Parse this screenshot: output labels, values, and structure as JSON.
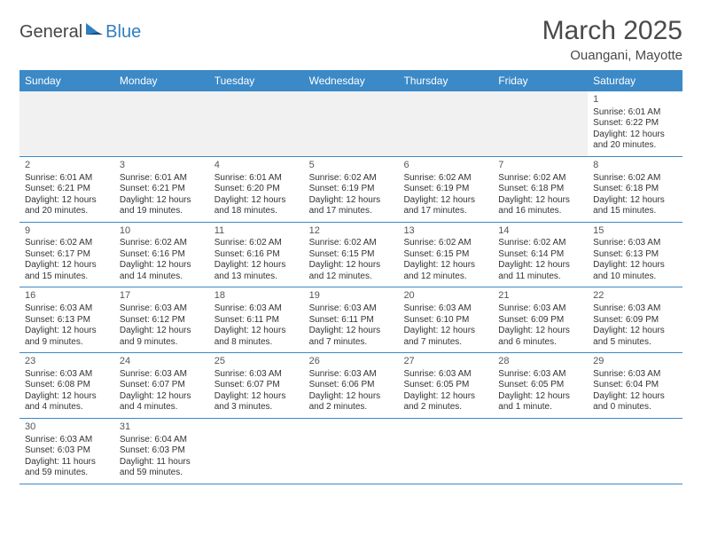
{
  "brand": {
    "part1": "General",
    "part2": "Blue"
  },
  "title": "March 2025",
  "location": "Ouangani, Mayotte",
  "colors": {
    "header_bg": "#3b89c7",
    "header_text": "#ffffff",
    "divider": "#3b89c7",
    "blank_bg": "#f1f1f1",
    "body_text": "#333333"
  },
  "day_headers": [
    "Sunday",
    "Monday",
    "Tuesday",
    "Wednesday",
    "Thursday",
    "Friday",
    "Saturday"
  ],
  "weeks": [
    [
      null,
      null,
      null,
      null,
      null,
      null,
      {
        "n": "1",
        "sr": "Sunrise: 6:01 AM",
        "ss": "Sunset: 6:22 PM",
        "d1": "Daylight: 12 hours",
        "d2": "and 20 minutes."
      }
    ],
    [
      {
        "n": "2",
        "sr": "Sunrise: 6:01 AM",
        "ss": "Sunset: 6:21 PM",
        "d1": "Daylight: 12 hours",
        "d2": "and 20 minutes."
      },
      {
        "n": "3",
        "sr": "Sunrise: 6:01 AM",
        "ss": "Sunset: 6:21 PM",
        "d1": "Daylight: 12 hours",
        "d2": "and 19 minutes."
      },
      {
        "n": "4",
        "sr": "Sunrise: 6:01 AM",
        "ss": "Sunset: 6:20 PM",
        "d1": "Daylight: 12 hours",
        "d2": "and 18 minutes."
      },
      {
        "n": "5",
        "sr": "Sunrise: 6:02 AM",
        "ss": "Sunset: 6:19 PM",
        "d1": "Daylight: 12 hours",
        "d2": "and 17 minutes."
      },
      {
        "n": "6",
        "sr": "Sunrise: 6:02 AM",
        "ss": "Sunset: 6:19 PM",
        "d1": "Daylight: 12 hours",
        "d2": "and 17 minutes."
      },
      {
        "n": "7",
        "sr": "Sunrise: 6:02 AM",
        "ss": "Sunset: 6:18 PM",
        "d1": "Daylight: 12 hours",
        "d2": "and 16 minutes."
      },
      {
        "n": "8",
        "sr": "Sunrise: 6:02 AM",
        "ss": "Sunset: 6:18 PM",
        "d1": "Daylight: 12 hours",
        "d2": "and 15 minutes."
      }
    ],
    [
      {
        "n": "9",
        "sr": "Sunrise: 6:02 AM",
        "ss": "Sunset: 6:17 PM",
        "d1": "Daylight: 12 hours",
        "d2": "and 15 minutes."
      },
      {
        "n": "10",
        "sr": "Sunrise: 6:02 AM",
        "ss": "Sunset: 6:16 PM",
        "d1": "Daylight: 12 hours",
        "d2": "and 14 minutes."
      },
      {
        "n": "11",
        "sr": "Sunrise: 6:02 AM",
        "ss": "Sunset: 6:16 PM",
        "d1": "Daylight: 12 hours",
        "d2": "and 13 minutes."
      },
      {
        "n": "12",
        "sr": "Sunrise: 6:02 AM",
        "ss": "Sunset: 6:15 PM",
        "d1": "Daylight: 12 hours",
        "d2": "and 12 minutes."
      },
      {
        "n": "13",
        "sr": "Sunrise: 6:02 AM",
        "ss": "Sunset: 6:15 PM",
        "d1": "Daylight: 12 hours",
        "d2": "and 12 minutes."
      },
      {
        "n": "14",
        "sr": "Sunrise: 6:02 AM",
        "ss": "Sunset: 6:14 PM",
        "d1": "Daylight: 12 hours",
        "d2": "and 11 minutes."
      },
      {
        "n": "15",
        "sr": "Sunrise: 6:03 AM",
        "ss": "Sunset: 6:13 PM",
        "d1": "Daylight: 12 hours",
        "d2": "and 10 minutes."
      }
    ],
    [
      {
        "n": "16",
        "sr": "Sunrise: 6:03 AM",
        "ss": "Sunset: 6:13 PM",
        "d1": "Daylight: 12 hours",
        "d2": "and 9 minutes."
      },
      {
        "n": "17",
        "sr": "Sunrise: 6:03 AM",
        "ss": "Sunset: 6:12 PM",
        "d1": "Daylight: 12 hours",
        "d2": "and 9 minutes."
      },
      {
        "n": "18",
        "sr": "Sunrise: 6:03 AM",
        "ss": "Sunset: 6:11 PM",
        "d1": "Daylight: 12 hours",
        "d2": "and 8 minutes."
      },
      {
        "n": "19",
        "sr": "Sunrise: 6:03 AM",
        "ss": "Sunset: 6:11 PM",
        "d1": "Daylight: 12 hours",
        "d2": "and 7 minutes."
      },
      {
        "n": "20",
        "sr": "Sunrise: 6:03 AM",
        "ss": "Sunset: 6:10 PM",
        "d1": "Daylight: 12 hours",
        "d2": "and 7 minutes."
      },
      {
        "n": "21",
        "sr": "Sunrise: 6:03 AM",
        "ss": "Sunset: 6:09 PM",
        "d1": "Daylight: 12 hours",
        "d2": "and 6 minutes."
      },
      {
        "n": "22",
        "sr": "Sunrise: 6:03 AM",
        "ss": "Sunset: 6:09 PM",
        "d1": "Daylight: 12 hours",
        "d2": "and 5 minutes."
      }
    ],
    [
      {
        "n": "23",
        "sr": "Sunrise: 6:03 AM",
        "ss": "Sunset: 6:08 PM",
        "d1": "Daylight: 12 hours",
        "d2": "and 4 minutes."
      },
      {
        "n": "24",
        "sr": "Sunrise: 6:03 AM",
        "ss": "Sunset: 6:07 PM",
        "d1": "Daylight: 12 hours",
        "d2": "and 4 minutes."
      },
      {
        "n": "25",
        "sr": "Sunrise: 6:03 AM",
        "ss": "Sunset: 6:07 PM",
        "d1": "Daylight: 12 hours",
        "d2": "and 3 minutes."
      },
      {
        "n": "26",
        "sr": "Sunrise: 6:03 AM",
        "ss": "Sunset: 6:06 PM",
        "d1": "Daylight: 12 hours",
        "d2": "and 2 minutes."
      },
      {
        "n": "27",
        "sr": "Sunrise: 6:03 AM",
        "ss": "Sunset: 6:05 PM",
        "d1": "Daylight: 12 hours",
        "d2": "and 2 minutes."
      },
      {
        "n": "28",
        "sr": "Sunrise: 6:03 AM",
        "ss": "Sunset: 6:05 PM",
        "d1": "Daylight: 12 hours",
        "d2": "and 1 minute."
      },
      {
        "n": "29",
        "sr": "Sunrise: 6:03 AM",
        "ss": "Sunset: 6:04 PM",
        "d1": "Daylight: 12 hours",
        "d2": "and 0 minutes."
      }
    ],
    [
      {
        "n": "30",
        "sr": "Sunrise: 6:03 AM",
        "ss": "Sunset: 6:03 PM",
        "d1": "Daylight: 11 hours",
        "d2": "and 59 minutes."
      },
      {
        "n": "31",
        "sr": "Sunrise: 6:04 AM",
        "ss": "Sunset: 6:03 PM",
        "d1": "Daylight: 11 hours",
        "d2": "and 59 minutes."
      },
      null,
      null,
      null,
      null,
      null
    ]
  ]
}
